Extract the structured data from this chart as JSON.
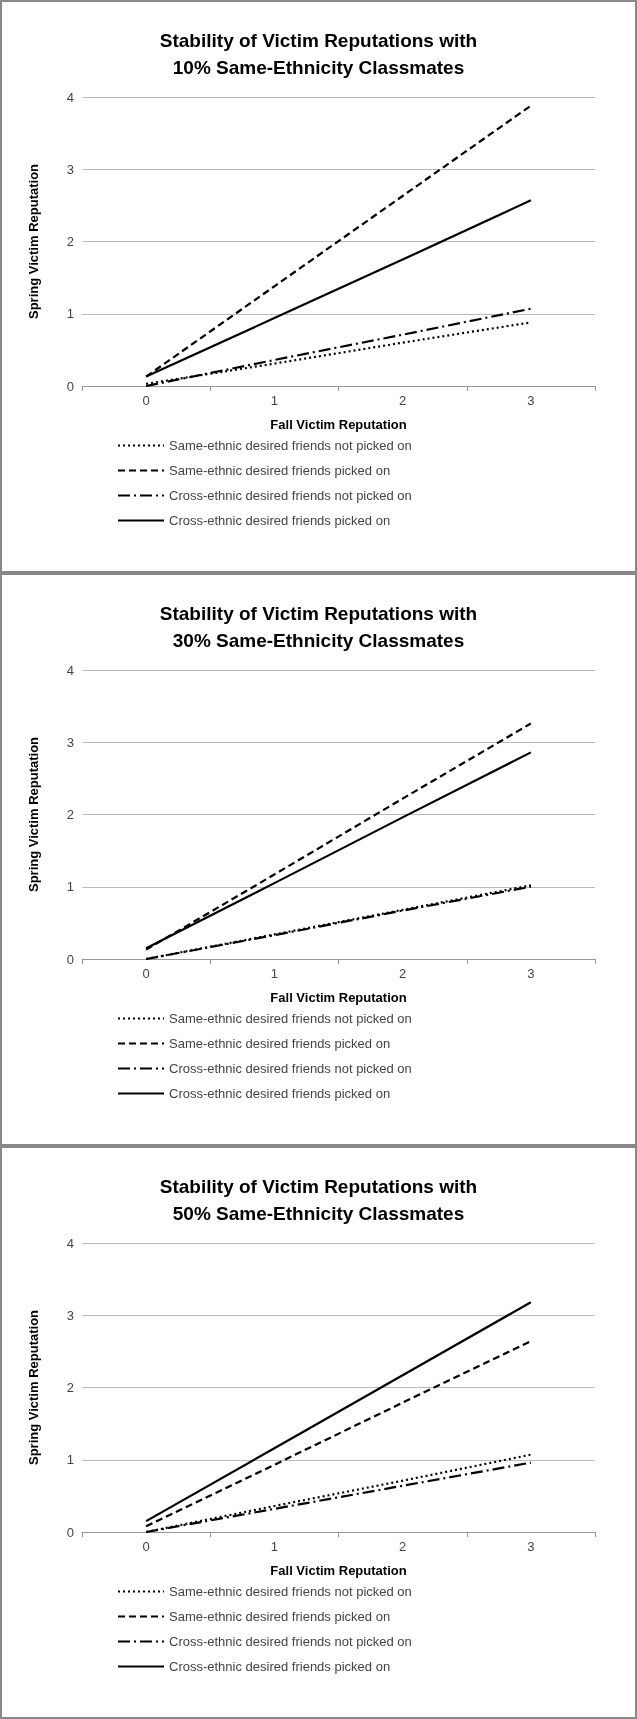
{
  "chart_data": [
    {
      "type": "line",
      "title": "Stability of Victim Reputations with\n10% Same-Ethnicity Classmates",
      "xlabel": "Fall Victim Reputation",
      "ylabel": "Spring Victim Reputation",
      "categories": [
        "0",
        "1",
        "2",
        "3"
      ],
      "ylim": [
        0,
        4
      ],
      "yticks": [
        0,
        1,
        2,
        3,
        4
      ],
      "grid": "y",
      "legend": "bottom",
      "marker": "none",
      "series": [
        {
          "name": "Same-ethnic desired friends not picked on",
          "color": "#000000",
          "line_style": "dotted",
          "values": [
            0.03,
            0.31,
            0.6,
            0.88
          ]
        },
        {
          "name": "Same-ethnic desired friends picked on",
          "color": "#000000",
          "line_style": "dashed",
          "values": [
            0.13,
            1.38,
            2.63,
            3.88
          ]
        },
        {
          "name": "Cross-ethnic desired friends not picked on",
          "color": "#000000",
          "line_style": "dashdot",
          "values": [
            0,
            0.36,
            0.71,
            1.07
          ]
        },
        {
          "name": "Cross-ethnic desired friends picked on",
          "color": "#000000",
          "line_style": "solid",
          "values": [
            0.13,
            0.94,
            1.75,
            2.57
          ]
        }
      ]
    },
    {
      "type": "line",
      "title": "Stability of Victim Reputations with\n30% Same-Ethnicity Classmates",
      "xlabel": "Fall Victim Reputation",
      "ylabel": "Spring Victim Reputation",
      "categories": [
        "0",
        "1",
        "2",
        "3"
      ],
      "ylim": [
        0,
        4
      ],
      "yticks": [
        0,
        1,
        2,
        3,
        4
      ],
      "grid": "y",
      "legend": "bottom",
      "marker": "none",
      "series": [
        {
          "name": "Same-ethnic desired friends not picked on",
          "color": "#000000",
          "line_style": "dotted",
          "values": [
            0,
            0.34,
            0.68,
            1.02
          ]
        },
        {
          "name": "Same-ethnic desired friends picked on",
          "color": "#000000",
          "line_style": "dashed",
          "values": [
            0.13,
            1.17,
            2.22,
            3.26
          ]
        },
        {
          "name": "Cross-ethnic desired friends not picked on",
          "color": "#000000",
          "line_style": "dashdot",
          "values": [
            0,
            0.33,
            0.67,
            1.0
          ]
        },
        {
          "name": "Cross-ethnic desired friends picked on",
          "color": "#000000",
          "line_style": "solid",
          "values": [
            0.15,
            1.05,
            1.96,
            2.86
          ]
        }
      ]
    },
    {
      "type": "line",
      "title": "Stability of Victim Reputations with\n50% Same-Ethnicity Classmates",
      "xlabel": "Fall Victim Reputation",
      "ylabel": "Spring Victim Reputation",
      "categories": [
        "0",
        "1",
        "2",
        "3"
      ],
      "ylim": [
        0,
        4
      ],
      "yticks": [
        0,
        1,
        2,
        3,
        4
      ],
      "grid": "y",
      "legend": "bottom",
      "marker": "none",
      "series": [
        {
          "name": "Same-ethnic desired friends not picked on",
          "color": "#000000",
          "line_style": "dotted",
          "values": [
            0,
            0.36,
            0.71,
            1.07
          ]
        },
        {
          "name": "Same-ethnic desired friends picked on",
          "color": "#000000",
          "line_style": "dashed",
          "values": [
            0.08,
            0.93,
            1.79,
            2.64
          ]
        },
        {
          "name": "Cross-ethnic desired friends not picked on",
          "color": "#000000",
          "line_style": "dashdot",
          "values": [
            0,
            0.32,
            0.64,
            0.96
          ]
        },
        {
          "name": "Cross-ethnic desired friends picked on",
          "color": "#000000",
          "line_style": "solid",
          "values": [
            0.15,
            1.16,
            2.17,
            3.18
          ]
        }
      ]
    }
  ]
}
